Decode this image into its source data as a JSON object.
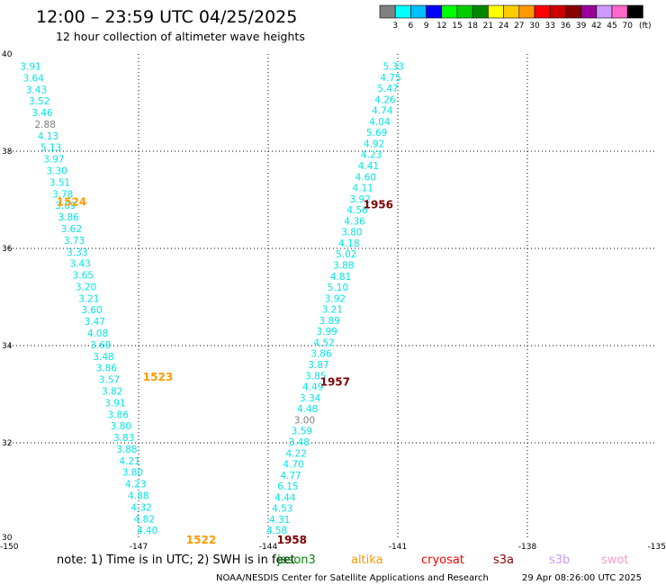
{
  "header": {
    "title": "12:00 – 23:59 UTC 04/25/2025",
    "subtitle": "12 hour collection of altimeter wave heights"
  },
  "colorbar": {
    "ticks": [
      "3",
      "6",
      "9",
      "12",
      "15",
      "18",
      "21",
      "24",
      "27",
      "30",
      "33",
      "36",
      "39",
      "42",
      "45",
      "70"
    ],
    "colors": [
      "#808080",
      "#00ffff",
      "#00bfff",
      "#0000ff",
      "#00ff00",
      "#00cc00",
      "#008800",
      "#ffff00",
      "#ffcc00",
      "#ff9900",
      "#ff0000",
      "#cc0000",
      "#880000",
      "#990099",
      "#cc99ff",
      "#ff66cc",
      "#000000"
    ],
    "unit": "(ft)"
  },
  "map": {
    "lon_range": [
      -150,
      -135
    ],
    "lat_range": [
      30,
      40
    ],
    "x_ticks": [
      -150,
      -147,
      -144,
      -141,
      -138,
      -135
    ],
    "y_ticks": [
      30,
      32,
      34,
      36,
      38,
      40
    ],
    "x_tick_labels": [
      "-150",
      "-147",
      "-144",
      "-141",
      "-138",
      "-135"
    ],
    "y_tick_labels": [
      "30",
      "32",
      "34",
      "36",
      "38",
      "40"
    ]
  },
  "tracks": [
    {
      "lon_start": -149.5,
      "lat_start": 39.75,
      "lon_end": -146.8,
      "lat_end": 30.2,
      "labels": [
        "3.91",
        "3.64",
        "3.43",
        "3.52",
        "3.46",
        "2.88",
        "4.13",
        "5.13",
        "3.97",
        "3.30",
        "3.51",
        "3.78",
        "3.69",
        "3.86",
        "3.62",
        "3.73",
        "3.33",
        "3.43",
        "3.65",
        "3.20",
        "3.21",
        "3.60",
        "3.47",
        "4.08",
        "3.69",
        "3.48",
        "3.86",
        "3.57",
        "3.82",
        "3.91",
        "3.86",
        "3.80",
        "3.83",
        "3.88",
        "4.21",
        "3.80",
        "4.23",
        "4.88",
        "4.32",
        "4.82",
        "4.40"
      ],
      "colors": [
        "#00e5e5",
        "#00e5e5",
        "#00e5e5",
        "#00e5e5",
        "#00e5e5",
        "#808080",
        "#00e5e5",
        "#00e5e5",
        "#00e5e5",
        "#00e5e5",
        "#00e5e5",
        "#00e5e5",
        "#00e5e5",
        "#00e5e5",
        "#00e5e5",
        "#00e5e5",
        "#00e5e5",
        "#00e5e5",
        "#00e5e5",
        "#00e5e5",
        "#00e5e5",
        "#00e5e5",
        "#00e5e5",
        "#00e5e5",
        "#00e5e5",
        "#00e5e5",
        "#00e5e5",
        "#00e5e5",
        "#00e5e5",
        "#00e5e5",
        "#00e5e5",
        "#00e5e5",
        "#00e5e5",
        "#00e5e5",
        "#00e5e5",
        "#00e5e5",
        "#00e5e5",
        "#00e5e5",
        "#00e5e5",
        "#00e5e5",
        "#00e5e5"
      ]
    },
    {
      "lon_start": -141.1,
      "lat_start": 39.75,
      "lon_end": -143.8,
      "lat_end": 30.2,
      "labels": [
        "5.33",
        "4.75",
        "5.47",
        "4.26",
        "4.74",
        "4.04",
        "5.69",
        "4.92",
        "4.23",
        "4.41",
        "4.60",
        "4.11",
        "3.92",
        "4.56",
        "4.36",
        "3.80",
        "4.18",
        "5.02",
        "3.88",
        "4.81",
        "5.10",
        "3.92",
        "3.21",
        "3.89",
        "3.99",
        "4.52",
        "3.86",
        "3.87",
        "3.85",
        "4.49",
        "3.34",
        "4.48",
        "3.00",
        "3.59",
        "3.48",
        "4.22",
        "4.70",
        "4.77",
        "6.15",
        "4.44",
        "4.53",
        "4.31",
        "4.58"
      ],
      "colors": [
        "#00e5e5",
        "#00e5e5",
        "#00e5e5",
        "#00e5e5",
        "#00e5e5",
        "#00e5e5",
        "#00e5e5",
        "#00e5e5",
        "#00e5e5",
        "#00e5e5",
        "#00e5e5",
        "#00e5e5",
        "#00e5e5",
        "#00e5e5",
        "#00e5e5",
        "#00e5e5",
        "#00e5e5",
        "#00e5e5",
        "#00e5e5",
        "#00e5e5",
        "#00e5e5",
        "#00e5e5",
        "#00e5e5",
        "#00e5e5",
        "#00e5e5",
        "#00e5e5",
        "#00e5e5",
        "#00e5e5",
        "#00e5e5",
        "#00e5e5",
        "#00e5e5",
        "#00e5e5",
        "#808080",
        "#00e5e5",
        "#00e5e5",
        "#00e5e5",
        "#00e5e5",
        "#00e5e5",
        "#00e5e5",
        "#00e5e5",
        "#00e5e5",
        "#00e5e5",
        "#00e5e5"
      ]
    }
  ],
  "pass_times": [
    {
      "label": "1524",
      "lon": -148.9,
      "lat": 36.95,
      "color": "#ff9900"
    },
    {
      "label": "1523",
      "lon": -146.9,
      "lat": 33.35,
      "color": "#ff9900"
    },
    {
      "label": "1522",
      "lon": -145.9,
      "lat": 30.0,
      "color": "#ff9900"
    },
    {
      "label": "1956",
      "lon": -141.8,
      "lat": 36.9,
      "color": "#800000"
    },
    {
      "label": "1957",
      "lon": -142.8,
      "lat": 33.25,
      "color": "#800000"
    },
    {
      "label": "1958",
      "lon": -143.8,
      "lat": 30.0,
      "color": "#800000"
    }
  ],
  "footer": {
    "note": "note:  1) Time is in UTC;  2) SWH is in feet",
    "satellites": [
      {
        "name": "jason3",
        "color": "#008800"
      },
      {
        "name": "altika",
        "color": "#ff9900"
      },
      {
        "name": "cryosat",
        "color": "#ff0000"
      },
      {
        "name": "s3a",
        "color": "#880000"
      },
      {
        "name": "s3b",
        "color": "#cc99ff"
      },
      {
        "name": "swot",
        "color": "#ff99cc"
      }
    ],
    "credit": "NOAA/NESDIS Center for Satellite Applications and Research",
    "timestamp": "29 Apr 08:26:00 UTC 2025"
  }
}
